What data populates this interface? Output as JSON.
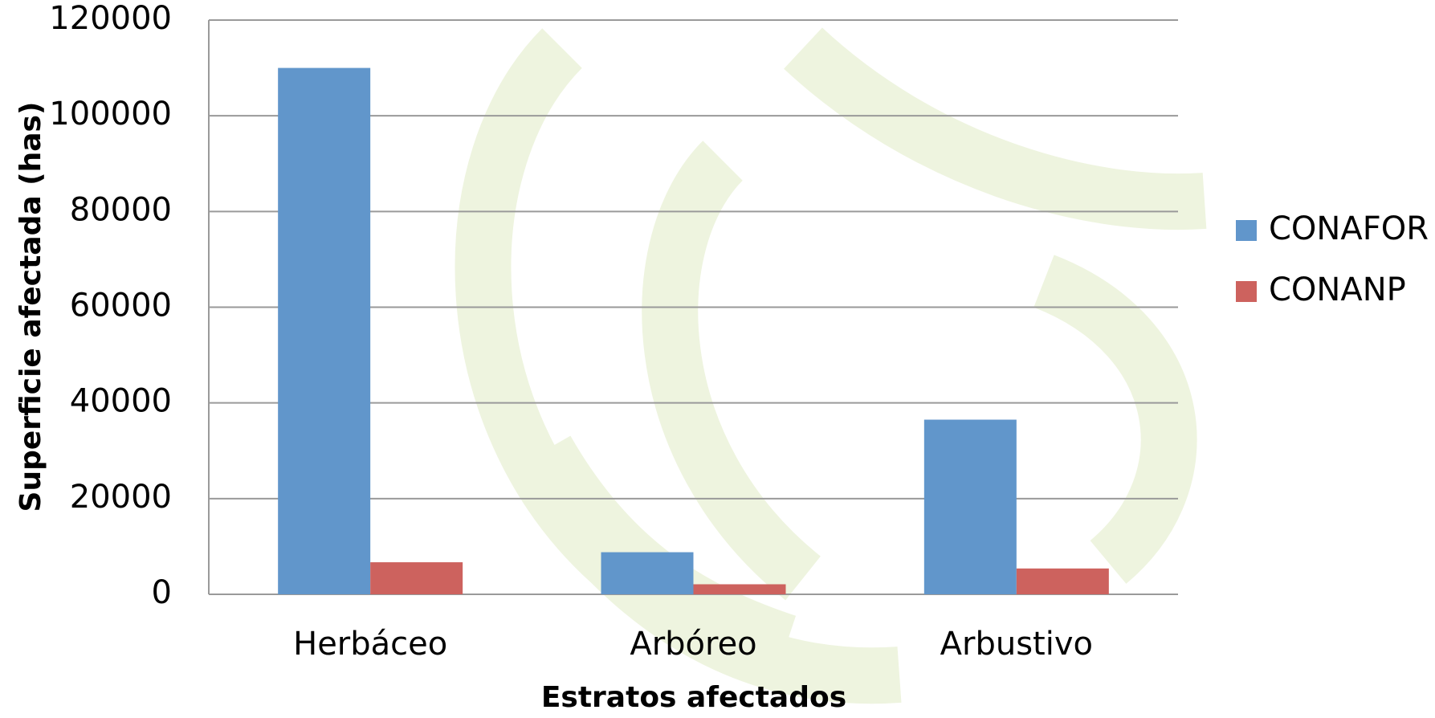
{
  "chart_data": {
    "type": "bar",
    "x_label": "Estratos afectados",
    "y_label": "Superficie afectada (has)",
    "categories": [
      "Herbáceo",
      "Arbóreo",
      "Arbustivo"
    ],
    "series": [
      {
        "name": "CONAFOR",
        "color": "#6196cb",
        "values": [
          110000,
          8800,
          36500
        ]
      },
      {
        "name": "CONANP",
        "color": "#cd625e",
        "values": [
          6700,
          2100,
          5400
        ]
      }
    ],
    "ylim": [
      0,
      120000
    ],
    "yticks": [
      0,
      20000,
      40000,
      60000,
      80000,
      100000,
      120000
    ],
    "grid": true,
    "legend": "right"
  }
}
